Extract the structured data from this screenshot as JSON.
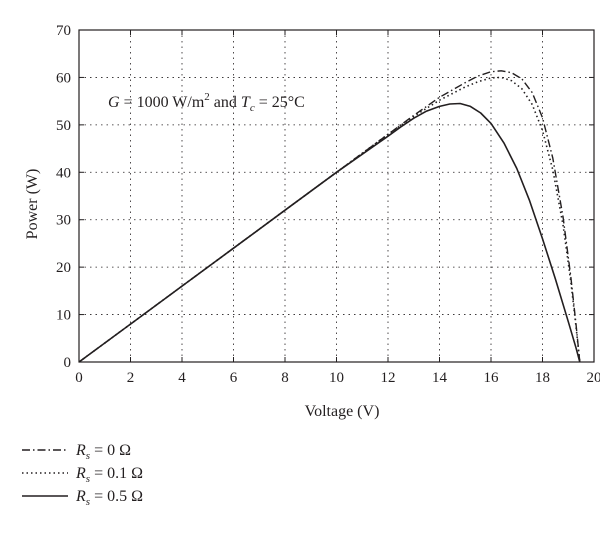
{
  "chart_data": {
    "type": "line",
    "xlabel": "Voltage (V)",
    "ylabel": "Power (W)",
    "xlim": [
      0,
      20
    ],
    "ylim": [
      0,
      70
    ],
    "xticks": [
      "0",
      "2",
      "4",
      "6",
      "8",
      "10",
      "12",
      "14",
      "16",
      "18",
      "20"
    ],
    "yticks": [
      "0",
      "10",
      "20",
      "30",
      "40",
      "50",
      "60",
      "70"
    ],
    "grid": true,
    "legend_position": "bottom-left",
    "annotation": {
      "g_sym": "G",
      "g_eq": " = 1000 W/m",
      "g_exp": "2",
      "and": " and ",
      "t_sym": "T",
      "t_sub": "c",
      "t_eq": " = 25°C"
    },
    "series": [
      {
        "name": "R_s = 0 Ω",
        "legend_sym": "R",
        "legend_sub": "s",
        "legend_eq": " = 0 Ω",
        "style": "dashdot",
        "x": [
          0,
          2,
          4,
          6,
          8,
          10,
          12,
          13,
          14,
          15,
          15.5,
          16,
          16.4,
          16.8,
          17.2,
          17.6,
          18.0,
          18.4,
          18.8,
          19.1,
          19.3,
          19.45
        ],
        "y": [
          0,
          8,
          16,
          24,
          32,
          40,
          48,
          52,
          55.8,
          58.9,
          60.3,
          61.2,
          61.4,
          61.0,
          59.7,
          56.8,
          51.5,
          43.0,
          30.5,
          18.0,
          8.0,
          0
        ]
      },
      {
        "name": "R_s = 0.1 Ω",
        "legend_sym": "R",
        "legend_sub": "s",
        "legend_eq": " = 0.1 Ω",
        "style": "dotted",
        "x": [
          0,
          2,
          4,
          6,
          8,
          10,
          12,
          13,
          14,
          15,
          15.5,
          16,
          16.4,
          16.8,
          17.2,
          17.6,
          18.0,
          18.4,
          18.8,
          19.1,
          19.3,
          19.45
        ],
        "y": [
          0,
          8,
          16,
          24,
          32,
          40,
          48,
          51.8,
          55.2,
          58.0,
          59.1,
          59.9,
          60.0,
          59.3,
          57.6,
          54.3,
          48.8,
          40.5,
          28.8,
          17.0,
          7.5,
          0
        ]
      },
      {
        "name": "R_s = 0.5 Ω",
        "legend_sym": "R",
        "legend_sub": "s",
        "legend_eq": " = 0.5 Ω",
        "style": "solid",
        "x": [
          0,
          2,
          4,
          6,
          8,
          10,
          12,
          12.5,
          13,
          13.5,
          14,
          14.4,
          14.8,
          15.2,
          15.6,
          16.0,
          16.5,
          17.0,
          17.5,
          18.0,
          18.5,
          19.0,
          19.3,
          19.45
        ],
        "y": [
          0,
          8,
          16,
          24,
          32,
          40,
          47.6,
          49.6,
          51.4,
          52.9,
          53.9,
          54.4,
          54.5,
          53.9,
          52.5,
          50.3,
          46.2,
          40.8,
          34.0,
          26.0,
          17.5,
          8.5,
          3.0,
          0
        ]
      }
    ]
  }
}
